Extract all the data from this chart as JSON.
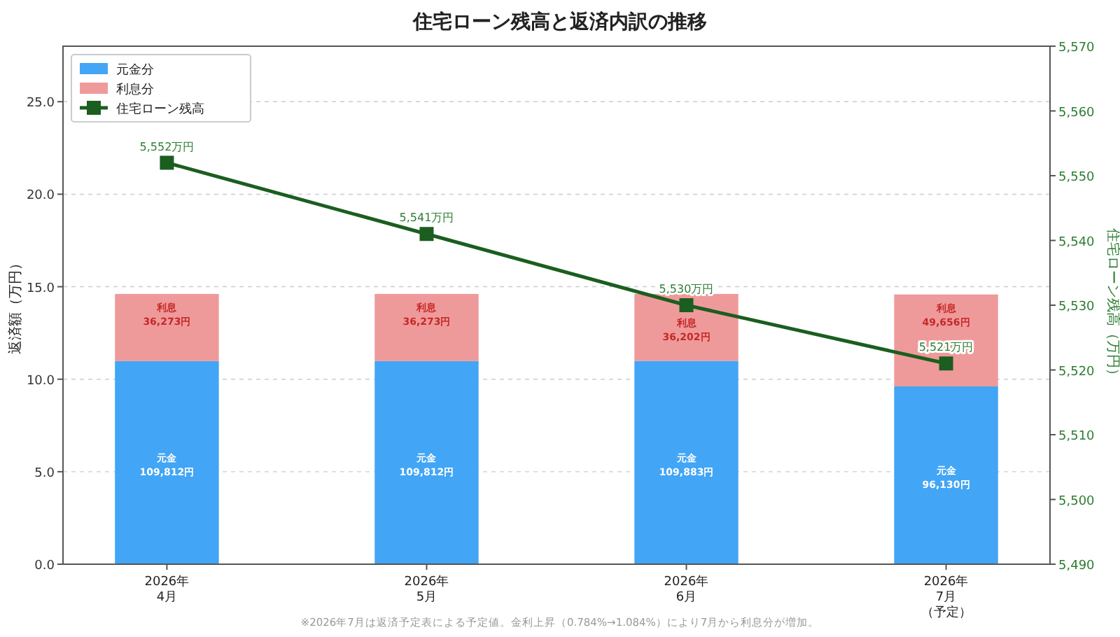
{
  "chart_data": {
    "type": "bar",
    "title": "住宅ローン残高と返済内訳の推移",
    "ylabel": "返済額（万円）",
    "y2label": "住宅ローン残高（万円）",
    "categories": [
      "2026年4月",
      "2026年5月",
      "2026年6月",
      "2026年7月（予定）"
    ],
    "stacked": true,
    "series": [
      {
        "name": "元金分",
        "color": "#42a5f5",
        "values": [
          10.98,
          10.98,
          10.99,
          9.61
        ],
        "value_labels": [
          "元金\n109,812円",
          "元金\n109,812円",
          "元金\n109,883円",
          "元金\n96,130円"
        ]
      },
      {
        "name": "利息分",
        "color": "#ef9a9a",
        "values": [
          3.63,
          3.63,
          3.62,
          4.97
        ],
        "value_labels": [
          "利息\n36,273円",
          "利息\n36,273円",
          "利息\n36,202円",
          "利息\n49,656円"
        ]
      },
      {
        "name": "住宅ローン残高",
        "type": "line",
        "axis": "y2",
        "color": "#1b5e20",
        "marker": "square",
        "values": [
          5552,
          5541,
          5530,
          5521
        ],
        "value_labels": [
          "5,552万円",
          "5,541万円",
          "5,530万円",
          "5,521万円"
        ]
      }
    ],
    "ylim": [
      0,
      28
    ],
    "yticks": [
      {
        "value": 0,
        "label": "0.0"
      },
      {
        "value": 5,
        "label": "5.0"
      },
      {
        "value": 10,
        "label": "10.0"
      },
      {
        "value": 15,
        "label": "15.0"
      },
      {
        "value": 20,
        "label": "20.0"
      },
      {
        "value": 25,
        "label": "25.0"
      }
    ],
    "y2lim": [
      5490,
      5570
    ],
    "y2ticks": [
      {
        "value": 5490,
        "label": "5,490"
      },
      {
        "value": 5500,
        "label": "5,500"
      },
      {
        "value": 5510,
        "label": "5,510"
      },
      {
        "value": 5520,
        "label": "5,520"
      },
      {
        "value": 5530,
        "label": "5,530"
      },
      {
        "value": 5540,
        "label": "5,540"
      },
      {
        "value": 5550,
        "label": "5,550"
      },
      {
        "value": 5560,
        "label": "5,560"
      },
      {
        "value": 5570,
        "label": "5,570"
      }
    ],
    "grid": "y",
    "legend": "top left",
    "annotations": [
      "※2026年7月は返済予定表による予定値。金利上昇（0.784%→1.084%）により7月から利息分が増加。"
    ]
  }
}
